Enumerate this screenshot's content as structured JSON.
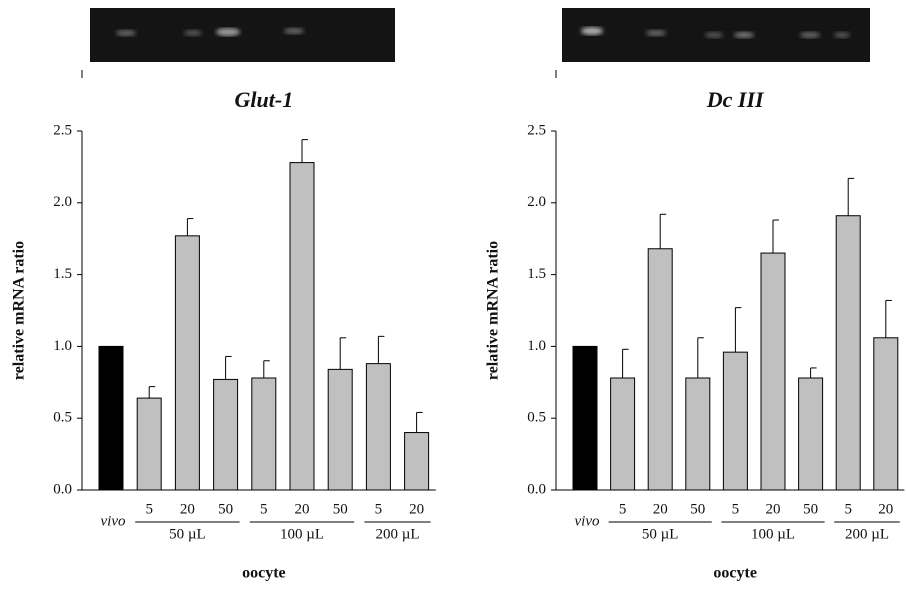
{
  "chart_data": [
    {
      "type": "bar",
      "title": "Glut-1",
      "y_label": "relative mRNA ratio",
      "x_label": "oocyte",
      "categories": [
        "vivo",
        "5",
        "20",
        "50",
        "5",
        "20",
        "50",
        "5",
        "20"
      ],
      "groups": [
        null,
        "50 µL",
        "50 µL",
        "50 µL",
        "100 µL",
        "100 µL",
        "100 µL",
        "200 µL",
        "200 µL"
      ],
      "values": [
        1.0,
        0.64,
        1.77,
        0.77,
        0.78,
        2.28,
        0.84,
        0.88,
        0.4
      ],
      "errors": [
        0,
        0.08,
        0.12,
        0.16,
        0.12,
        0.16,
        0.22,
        0.19,
        0.14
      ],
      "colors": [
        "#000000",
        "#c0c0c0",
        "#c0c0c0",
        "#c0c0c0",
        "#c0c0c0",
        "#c0c0c0",
        "#c0c0c0",
        "#c0c0c0",
        "#c0c0c0"
      ],
      "ylim": [
        0,
        2.5
      ],
      "yticks": [
        {
          "value": 0,
          "label": "0.0"
        },
        {
          "value": 0.5,
          "label": "0.5"
        },
        {
          "value": 1,
          "label": "1.0"
        },
        {
          "value": 1.5,
          "label": "1.5"
        },
        {
          "value": 2,
          "label": "2.0"
        },
        {
          "value": 2.5,
          "label": "2.5"
        }
      ]
    },
    {
      "type": "bar",
      "title": "Dc III",
      "y_label": "relative mRNA ratio",
      "x_label": "oocyte",
      "categories": [
        "vivo",
        "5",
        "20",
        "50",
        "5",
        "20",
        "50",
        "5",
        "20"
      ],
      "groups": [
        null,
        "50 µL",
        "50 µL",
        "50 µL",
        "100 µL",
        "100 µL",
        "100 µL",
        "200 µL",
        "200 µL"
      ],
      "values": [
        1.0,
        0.78,
        1.68,
        0.78,
        0.96,
        1.65,
        0.78,
        1.91,
        1.06
      ],
      "errors": [
        0,
        0.2,
        0.24,
        0.28,
        0.31,
        0.23,
        0.07,
        0.26,
        0.26
      ],
      "colors": [
        "#000000",
        "#c0c0c0",
        "#c0c0c0",
        "#c0c0c0",
        "#c0c0c0",
        "#c0c0c0",
        "#c0c0c0",
        "#c0c0c0",
        "#c0c0c0"
      ],
      "ylim": [
        0,
        2.5
      ],
      "yticks": [
        {
          "value": 0,
          "label": "0.0"
        },
        {
          "value": 0.5,
          "label": "0.5"
        },
        {
          "value": 1,
          "label": "1.0"
        },
        {
          "value": 1.5,
          "label": "1.5"
        },
        {
          "value": 2,
          "label": "2.0"
        },
        {
          "value": 2.5,
          "label": "2.5"
        }
      ]
    }
  ]
}
